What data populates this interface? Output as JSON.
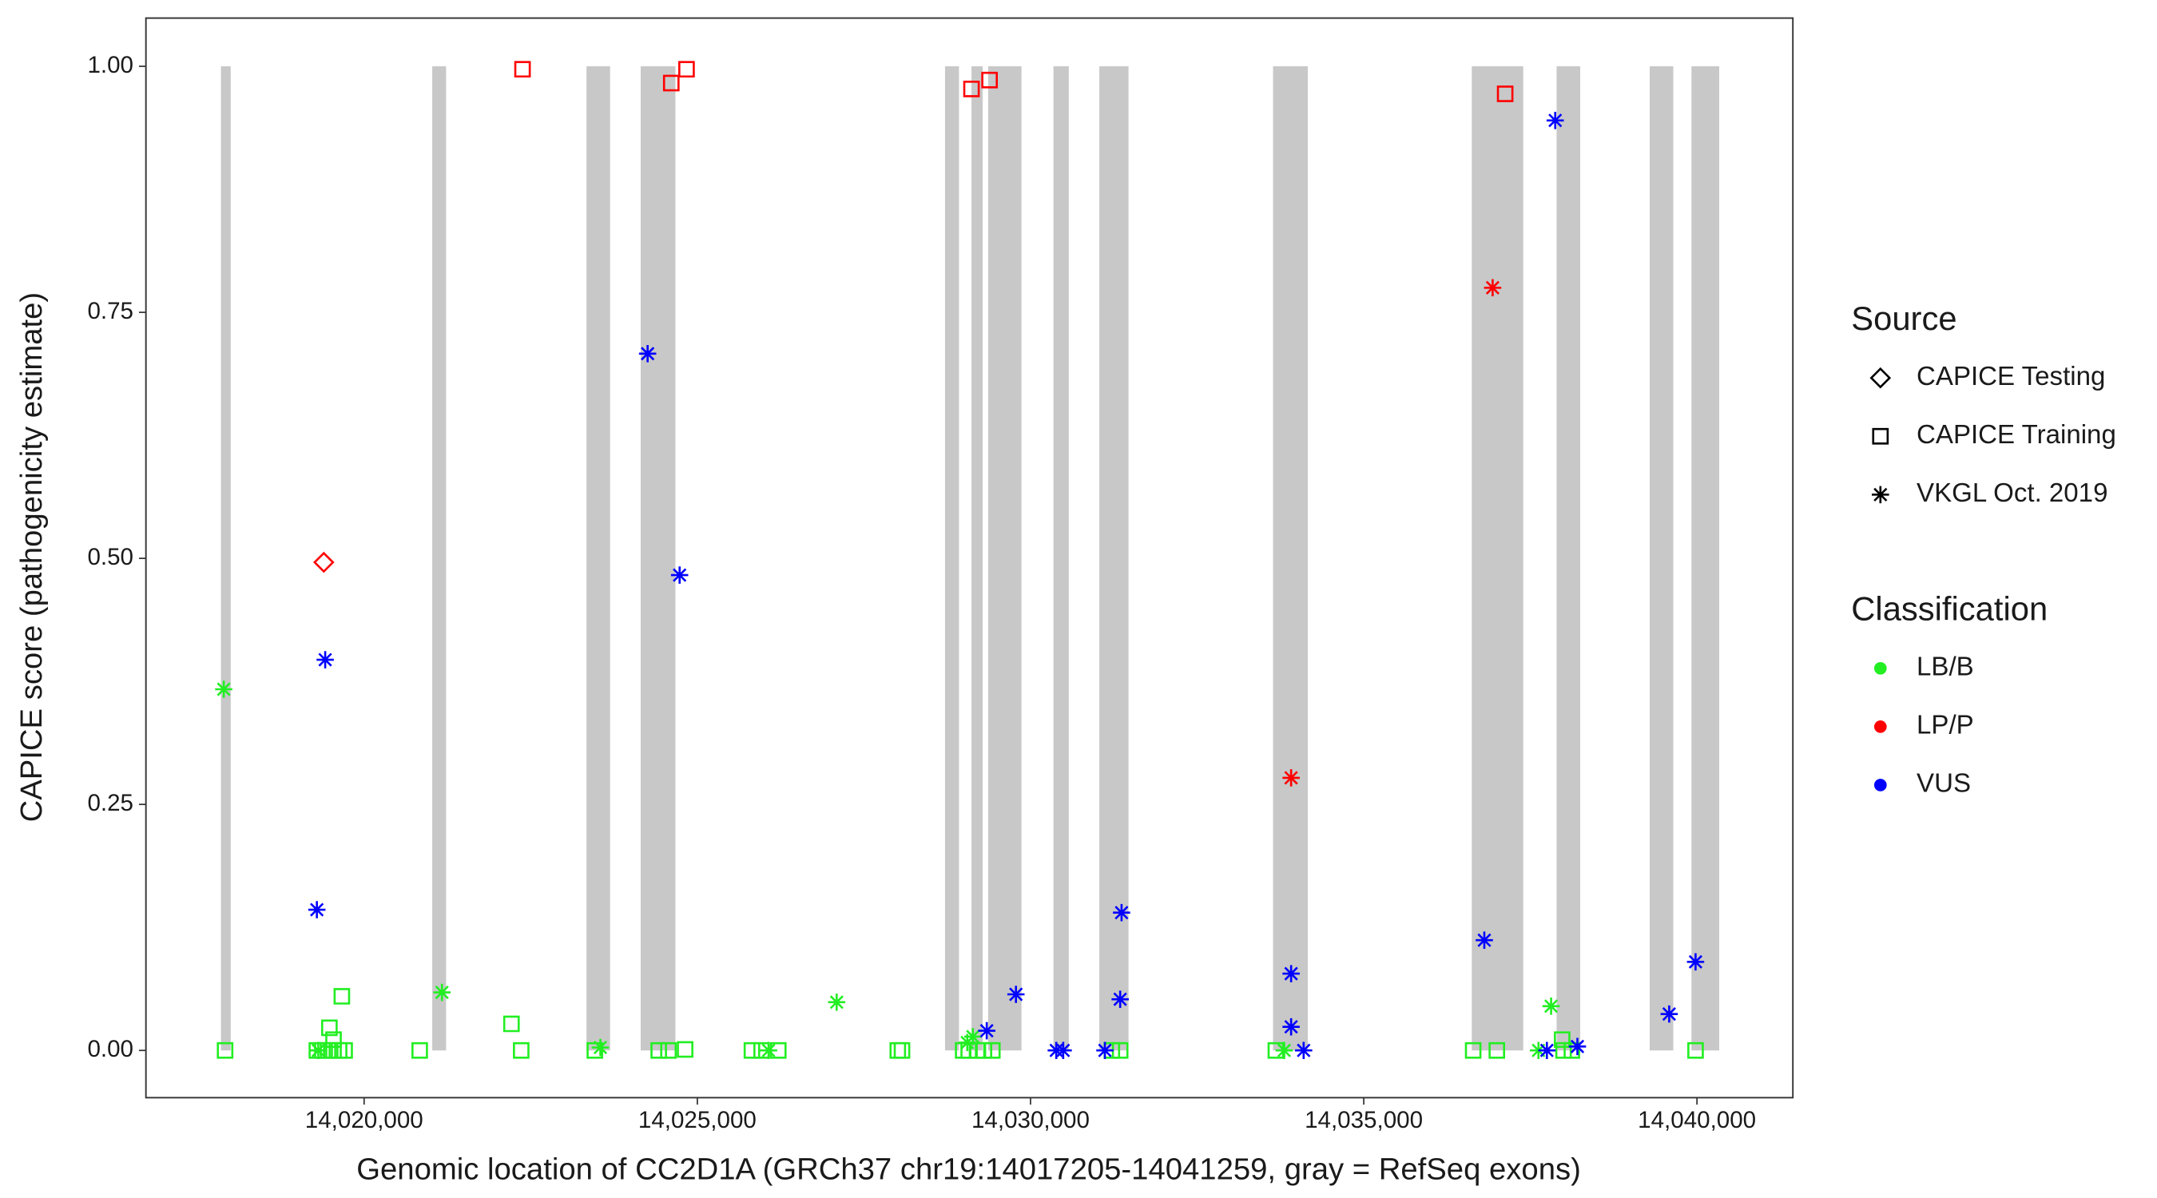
{
  "chart_data": {
    "type": "scatter",
    "x_label": "Genomic location of CC2D1A (GRCh37 chr19:14017205-14041259, gray = RefSeq exons)",
    "y_label": "CAPICE score (pathogenicity estimate)",
    "xlim": [
      14016726,
      14041439
    ],
    "ylim": [
      -0.048,
      1.049
    ],
    "xticks": [
      {
        "value": 14020000,
        "label": "14,020,000"
      },
      {
        "value": 14025000,
        "label": "14,025,000"
      },
      {
        "value": 14030000,
        "label": "14,030,000"
      },
      {
        "value": 14035000,
        "label": "14,035,000"
      },
      {
        "value": 14040000,
        "label": "14,040,000"
      }
    ],
    "yticks": [
      {
        "value": 0,
        "label": "0.00"
      },
      {
        "value": 0.25,
        "label": "0.25"
      },
      {
        "value": 0.5,
        "label": "0.50"
      },
      {
        "value": 0.75,
        "label": "0.75"
      },
      {
        "value": 1,
        "label": "1.00"
      }
    ],
    "exon_color": "#c8c8c8",
    "exons": [
      [
        14017852,
        14017998
      ],
      [
        14021022,
        14021230
      ],
      [
        14023337,
        14023691
      ],
      [
        14024150,
        14024671
      ],
      [
        14028717,
        14028926
      ],
      [
        14029114,
        14029281
      ],
      [
        14029364,
        14029864
      ],
      [
        14030344,
        14030574
      ],
      [
        14031032,
        14031470
      ],
      [
        14033639,
        14034161
      ],
      [
        14036621,
        14037393
      ],
      [
        14037894,
        14038248
      ],
      [
        14039291,
        14039645
      ],
      [
        14039917,
        14040334
      ]
    ],
    "legend": {
      "source": {
        "title": "Source",
        "items": [
          {
            "name": "CAPICE Testing",
            "shape": "diamond"
          },
          {
            "name": "CAPICE Training",
            "shape": "square"
          },
          {
            "name": "VKGL Oct. 2019",
            "shape": "asterisk"
          }
        ]
      },
      "classification": {
        "title": "Classification",
        "items": [
          {
            "name": "LB/B",
            "color": "#22ee22"
          },
          {
            "name": "LP/P",
            "color": "#ff0000"
          },
          {
            "name": "VUS",
            "color": "#0000ff"
          }
        ]
      }
    },
    "series": [
      {
        "source": "CAPICE Training",
        "classification": "LB/B",
        "x": [
          14017914,
          14019666,
          14019479,
          14019541,
          14019291,
          14019374,
          14019458,
          14019541,
          14019625,
          14019708,
          14020834,
          14022211,
          14022357,
          14023462,
          14024421,
          14024567,
          14024817,
          14025819,
          14025965,
          14026215,
          14028008,
          14028071,
          14028989,
          14029072,
          14029197,
          14029301,
          14029427,
          14031220,
          14031345,
          14033681,
          14036642,
          14036997,
          14037977,
          14037998,
          14038123,
          14039979
        ],
        "values": [
          0,
          0.055,
          0.023,
          0.011,
          0,
          0,
          0,
          0,
          0,
          0,
          0,
          0.027,
          0,
          0,
          0,
          0,
          0.001,
          0,
          0,
          0,
          0,
          0,
          0,
          0,
          0,
          0,
          0,
          0,
          0,
          0,
          0,
          0,
          0.011,
          0,
          0,
          0
        ]
      },
      {
        "source": "VKGL Oct. 2019",
        "classification": "LB/B",
        "x": [
          14017894,
          14021168,
          14023545,
          14027091,
          14029051,
          14029135,
          14037811,
          14037622,
          14033806,
          14026069,
          14019312
        ],
        "values": [
          0.367,
          0.059,
          0.003,
          0.049,
          0.008,
          0.014,
          0.045,
          0,
          0,
          0,
          0
        ]
      },
      {
        "source": "VKGL Oct. 2019",
        "classification": "VUS",
        "x": [
          14019291,
          14019416,
          14024254,
          14024734,
          14029343,
          14029781,
          14030386,
          14030490,
          14031116,
          14031366,
          14031345,
          14033910,
          14033910,
          14034098,
          14036809,
          14037873,
          14037748,
          14038206,
          14039583,
          14039979
        ],
        "values": [
          0.143,
          0.397,
          0.708,
          0.483,
          0.02,
          0.057,
          0,
          0,
          0,
          0.14,
          0.052,
          0.078,
          0.024,
          0,
          0.112,
          0.945,
          0,
          0.004,
          0.037,
          0.09
        ]
      },
      {
        "source": "CAPICE Training",
        "classification": "LP/P",
        "x": [
          14022377,
          14024609,
          14024838,
          14029114,
          14029385,
          14037122
        ],
        "values": [
          0.997,
          0.983,
          0.997,
          0.977,
          0.986,
          0.972
        ]
      },
      {
        "source": "CAPICE Testing",
        "classification": "LP/P",
        "x": [
          14019395
        ],
        "values": [
          0.496
        ]
      },
      {
        "source": "VKGL Oct. 2019",
        "classification": "LP/P",
        "x": [
          14036934,
          14033910
        ],
        "values": [
          0.775,
          0.277
        ]
      }
    ]
  }
}
